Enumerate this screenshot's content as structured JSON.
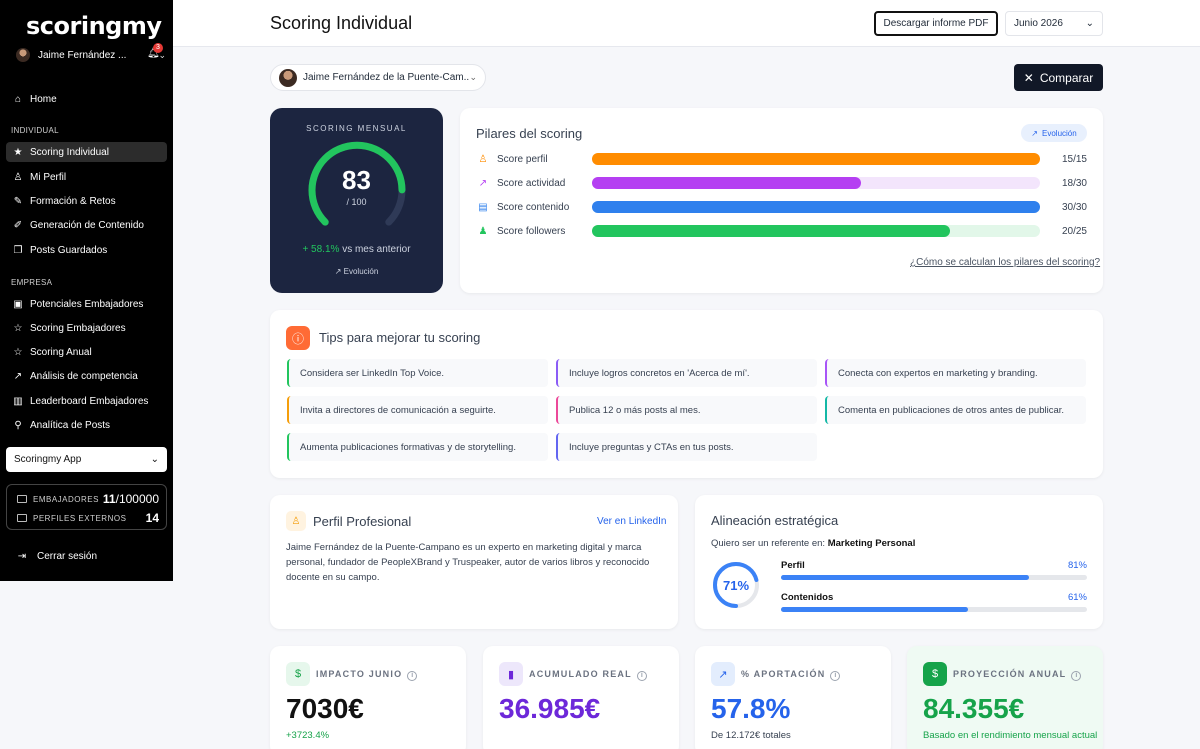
{
  "app": {
    "logo": "scoringmy"
  },
  "user": {
    "name": "Jaime Fernández ...",
    "notifications": "3"
  },
  "nav": {
    "home": "Home",
    "individual_section": "INDIVIDUAL",
    "individual": [
      "Scoring Individual",
      "Mi Perfil",
      "Formación & Retos",
      "Generación de Contenido",
      "Posts Guardados"
    ],
    "empresa_section": "EMPRESA",
    "empresa": [
      "Potenciales Embajadores",
      "Scoring Embajadores",
      "Scoring Anual",
      "Análisis de competencia",
      "Leaderboard Embajadores",
      "Analítica de Posts"
    ],
    "app_select": "Scoringmy App",
    "logout": "Cerrar sesión"
  },
  "counts": {
    "embajadores_label": "EMBAJADORES",
    "embajadores_value": "11",
    "embajadores_max": "/100000",
    "externos_label": "PERFILES EXTERNOS",
    "externos_value": "14"
  },
  "header": {
    "title": "Scoring Individual",
    "pdf_button": "Descargar informe PDF",
    "month": "Junio 2026"
  },
  "person_selector": "Jaime Fernández de la Puente-Cam...",
  "compare_button": "Comparar",
  "score": {
    "label": "SCORING MENSUAL",
    "value": "83",
    "max": "/ 100",
    "fraction": 0.83,
    "delta": "+ 58.1%",
    "delta_text": "vs mes anterior",
    "evolution": "Evolución"
  },
  "pillars": {
    "title": "Pilares del scoring",
    "evolution": "Evolución",
    "items": [
      {
        "label": "Score perfil",
        "value": "15/15",
        "fraction": 1.0,
        "color": "#ff8c00",
        "track": "#fff1de",
        "icon": "user-icon"
      },
      {
        "label": "Score actividad",
        "value": "18/30",
        "fraction": 0.6,
        "color": "#b53ff2",
        "track": "#f3e5fc",
        "icon": "trend-icon"
      },
      {
        "label": "Score contenido",
        "value": "30/30",
        "fraction": 1.0,
        "color": "#2f80ed",
        "track": "#e3efff",
        "icon": "content-icon"
      },
      {
        "label": "Score followers",
        "value": "20/25",
        "fraction": 0.8,
        "color": "#22c55e",
        "track": "#e2f7e9",
        "icon": "followers-icon"
      }
    ],
    "link": "¿Cómo se calculan los pilares del scoring?"
  },
  "tips": {
    "title": "Tips para mejorar tu scoring",
    "items": [
      {
        "text": "Considera ser LinkedIn Top Voice.",
        "color": "#22c55e"
      },
      {
        "text": "Incluye logros concretos en 'Acerca de mí'.",
        "color": "#8b5cf6"
      },
      {
        "text": "Conecta con expertos en marketing y branding.",
        "color": "#a855f7"
      },
      {
        "text": "Invita a directores de comunicación a seguirte.",
        "color": "#f59e0b"
      },
      {
        "text": "Publica 12 o más posts al mes.",
        "color": "#ec4899"
      },
      {
        "text": "Comenta en publicaciones de otros antes de publicar.",
        "color": "#14b8a6"
      },
      {
        "text": "Aumenta publicaciones formativas y de storytelling.",
        "color": "#22c55e"
      },
      {
        "text": "Incluye preguntas y CTAs en tus posts.",
        "color": "#6366f1"
      }
    ]
  },
  "perfil": {
    "title": "Perfil Profesional",
    "link": "Ver en LinkedIn",
    "text": "Jaime Fernández de la Puente-Campano es un experto en marketing digital y marca personal, fundador de PeopleXBrand y Truspeaker, autor de varios libros y reconocido docente en su campo."
  },
  "alineacion": {
    "title": "Alineación estratégica",
    "sub_prefix": "Quiero ser un referente en:",
    "sub_value": "Marketing Personal",
    "pct": "71%",
    "fraction": 0.71,
    "rows": [
      {
        "label": "Perfil",
        "value": "81%",
        "fraction": 0.81
      },
      {
        "label": "Contenidos",
        "value": "61%",
        "fraction": 0.61
      }
    ]
  },
  "stats": [
    {
      "label": "IMPACTO JUNIO",
      "value": "7030€",
      "foot": "+3723.4%",
      "color": "#111111",
      "foot_color": "#16a34a",
      "icon_bg": "#e6f7ec",
      "icon_color": "#16a34a",
      "icon": "$",
      "bg": "#ffffff"
    },
    {
      "label": "ACUMULADO REAL",
      "value": "36.985€",
      "foot": "",
      "color": "#6d28d9",
      "foot_color": "#6b7280",
      "icon_bg": "#ede7fb",
      "icon_color": "#6d28d9",
      "icon": "▮",
      "bg": "#ffffff"
    },
    {
      "label": "% APORTACIÓN",
      "value": "57.8%",
      "foot": "De 12.172€ totales",
      "color": "#2563eb",
      "foot_color": "#374151",
      "icon_bg": "#e3edfd",
      "icon_color": "#2563eb",
      "icon": "↗",
      "bg": "#ffffff"
    },
    {
      "label": "PROYECCIÓN ANUAL",
      "value": "84.355€",
      "foot": "Basado en el rendimiento mensual actual",
      "color": "#16a34a",
      "foot_color": "#16a34a",
      "icon_bg": "#16a34a",
      "icon_color": "#ffffff",
      "icon": "$",
      "bg": "#effaf3"
    }
  ]
}
